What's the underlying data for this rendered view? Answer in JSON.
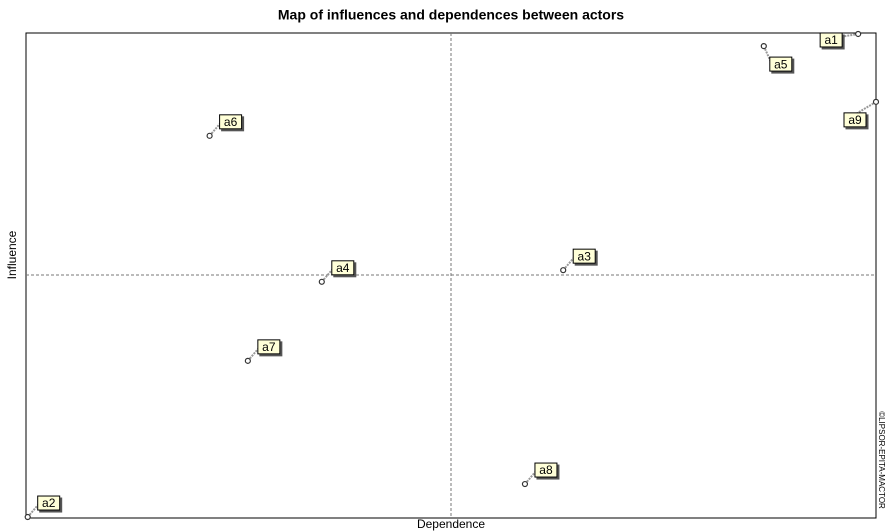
{
  "chart_data": {
    "type": "scatter",
    "title": "Map of influences and dependences between actors",
    "xlabel": "Dependence",
    "ylabel": "Influence",
    "watermark": "©LIPSOR-EPITA-MACTOR",
    "xlim": [
      0,
      100
    ],
    "ylim": [
      0,
      100
    ],
    "color": "#333333",
    "series": [
      {
        "labels": [
          "a1",
          "a2",
          "a3",
          "a4",
          "a5",
          "a6",
          "a7",
          "a8",
          "a9"
        ],
        "x": [
          97.9,
          0.2,
          63.2,
          34.8,
          86.8,
          21.6,
          26.1,
          58.7,
          100
        ],
        "values": [
          99.8,
          0.2,
          51.1,
          48.7,
          97.3,
          78.8,
          32.4,
          7.0,
          85.8
        ]
      }
    ]
  }
}
